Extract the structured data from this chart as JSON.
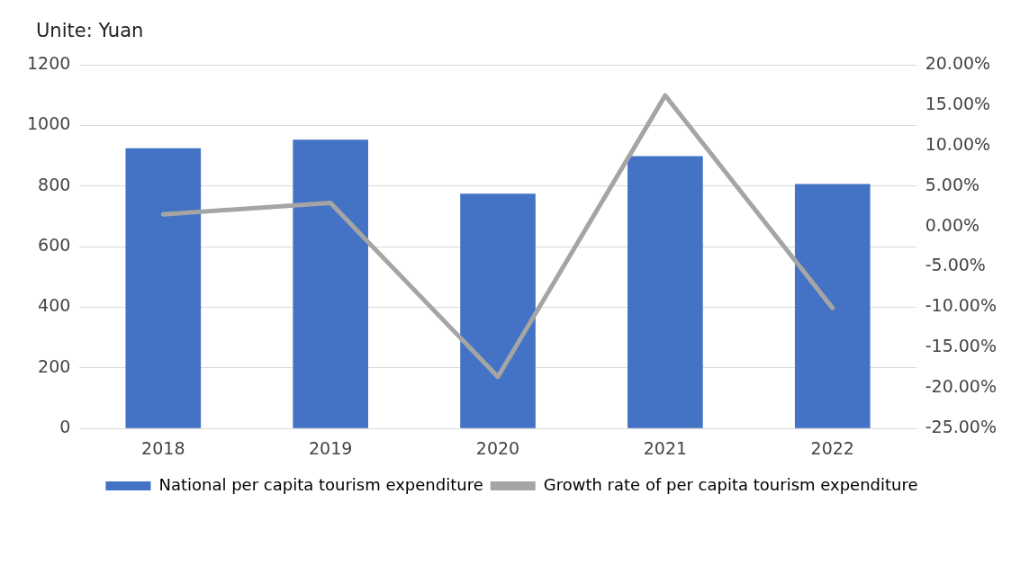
{
  "chart_data": {
    "type": "bar",
    "ylabel": "Unite: Yuan",
    "categories": [
      "2018",
      "2019",
      "2020",
      "2021",
      "2022"
    ],
    "series": [
      {
        "name": "National per capita tourism expenditure",
        "color": "#4472c4",
        "values": [
          925,
          953,
          775,
          899,
          807
        ]
      },
      {
        "name": "Growth rate of per capita tourism expenditure",
        "type": "line",
        "axis": "y2",
        "color": "#a5a5a5",
        "values": [
          1.5,
          2.9,
          -18.6,
          16.2,
          -10.1
        ]
      }
    ],
    "ylim": [
      0,
      1200
    ],
    "yticks": [
      0,
      200,
      400,
      600,
      800,
      1000,
      1200
    ],
    "y2lim": [
      -25,
      20
    ],
    "y2ticks": [
      {
        "value": -25,
        "label": "-25.00%"
      },
      {
        "value": -20,
        "label": "-20.00%"
      },
      {
        "value": -15,
        "label": "-15.00%"
      },
      {
        "value": -10,
        "label": "-10.00%"
      },
      {
        "value": -5,
        "label": "-5.00%"
      },
      {
        "value": 0,
        "label": "0.00%"
      },
      {
        "value": 5,
        "label": "5.00%"
      },
      {
        "value": 10,
        "label": "10.00%"
      },
      {
        "value": 15,
        "label": "15.00%"
      },
      {
        "value": 20,
        "label": "20.00%"
      }
    ],
    "grid": "y",
    "legend": "bottom",
    "marker": "none",
    "line_style": "solid"
  }
}
